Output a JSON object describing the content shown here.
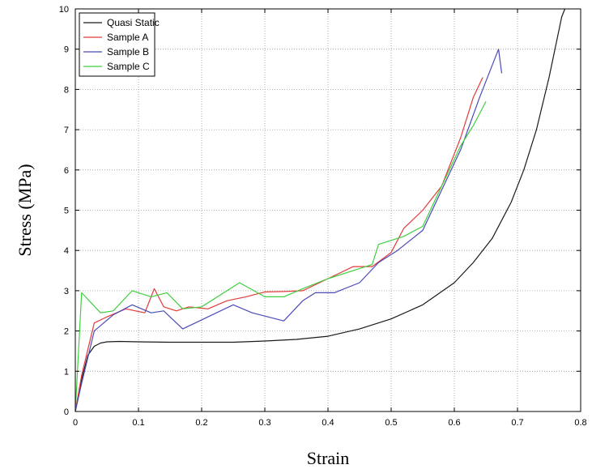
{
  "chart_data": {
    "type": "line",
    "title": "",
    "xlabel": "Strain",
    "ylabel": "Stress (MPa)",
    "xlim": [
      0,
      0.8
    ],
    "ylim": [
      0,
      10
    ],
    "x_ticks": [
      0,
      0.1,
      0.2,
      0.3,
      0.4,
      0.5,
      0.6,
      0.7,
      0.8
    ],
    "x_tick_labels": [
      "0",
      "0.1",
      "0.2",
      "0.3",
      "0.4",
      "0.5",
      "0.6",
      "0.7",
      "0.8"
    ],
    "y_ticks": [
      0,
      1,
      2,
      3,
      4,
      5,
      6,
      7,
      8,
      9,
      10
    ],
    "y_tick_labels": [
      "0",
      "1",
      "2",
      "3",
      "4",
      "5",
      "6",
      "7",
      "8",
      "9",
      "10"
    ],
    "grid": true,
    "legend_position": "top-left",
    "series": [
      {
        "name": "Quasi Static",
        "color": "#1a1a1a",
        "points": [
          [
            0,
            0
          ],
          [
            0.01,
            0.8
          ],
          [
            0.02,
            1.4
          ],
          [
            0.03,
            1.62
          ],
          [
            0.04,
            1.7
          ],
          [
            0.05,
            1.73
          ],
          [
            0.07,
            1.74
          ],
          [
            0.1,
            1.73
          ],
          [
            0.15,
            1.72
          ],
          [
            0.2,
            1.72
          ],
          [
            0.25,
            1.72
          ],
          [
            0.3,
            1.75
          ],
          [
            0.35,
            1.79
          ],
          [
            0.4,
            1.87
          ],
          [
            0.45,
            2.05
          ],
          [
            0.5,
            2.3
          ],
          [
            0.55,
            2.65
          ],
          [
            0.6,
            3.2
          ],
          [
            0.63,
            3.7
          ],
          [
            0.66,
            4.3
          ],
          [
            0.69,
            5.2
          ],
          [
            0.71,
            6.0
          ],
          [
            0.73,
            7.0
          ],
          [
            0.75,
            8.3
          ],
          [
            0.77,
            9.8
          ],
          [
            0.775,
            10
          ]
        ]
      },
      {
        "name": "Sample A",
        "color": "#e23b3b",
        "points": [
          [
            0,
            0
          ],
          [
            0.01,
            0.9
          ],
          [
            0.03,
            2.2
          ],
          [
            0.05,
            2.35
          ],
          [
            0.08,
            2.55
          ],
          [
            0.11,
            2.45
          ],
          [
            0.125,
            3.05
          ],
          [
            0.14,
            2.6
          ],
          [
            0.16,
            2.5
          ],
          [
            0.18,
            2.6
          ],
          [
            0.21,
            2.55
          ],
          [
            0.24,
            2.75
          ],
          [
            0.27,
            2.85
          ],
          [
            0.3,
            2.97
          ],
          [
            0.33,
            2.98
          ],
          [
            0.36,
            3.0
          ],
          [
            0.4,
            3.3
          ],
          [
            0.44,
            3.6
          ],
          [
            0.47,
            3.6
          ],
          [
            0.5,
            3.95
          ],
          [
            0.52,
            4.55
          ],
          [
            0.55,
            5.0
          ],
          [
            0.58,
            5.6
          ],
          [
            0.61,
            6.8
          ],
          [
            0.63,
            7.8
          ],
          [
            0.645,
            8.3
          ]
        ]
      },
      {
        "name": "Sample B",
        "color": "#4a4ab8",
        "points": [
          [
            0,
            0
          ],
          [
            0.01,
            0.7
          ],
          [
            0.03,
            2.0
          ],
          [
            0.06,
            2.4
          ],
          [
            0.09,
            2.65
          ],
          [
            0.12,
            2.45
          ],
          [
            0.14,
            2.5
          ],
          [
            0.17,
            2.05
          ],
          [
            0.21,
            2.35
          ],
          [
            0.25,
            2.65
          ],
          [
            0.28,
            2.45
          ],
          [
            0.33,
            2.25
          ],
          [
            0.36,
            2.75
          ],
          [
            0.38,
            2.95
          ],
          [
            0.41,
            2.95
          ],
          [
            0.45,
            3.2
          ],
          [
            0.48,
            3.7
          ],
          [
            0.51,
            4.0
          ],
          [
            0.55,
            4.5
          ],
          [
            0.58,
            5.5
          ],
          [
            0.61,
            6.5
          ],
          [
            0.64,
            7.8
          ],
          [
            0.67,
            9.0
          ],
          [
            0.675,
            8.4
          ]
        ]
      },
      {
        "name": "Sample C",
        "color": "#3fcf3f",
        "points": [
          [
            0,
            0
          ],
          [
            0.01,
            2.95
          ],
          [
            0.04,
            2.45
          ],
          [
            0.06,
            2.5
          ],
          [
            0.09,
            3.0
          ],
          [
            0.12,
            2.85
          ],
          [
            0.145,
            2.95
          ],
          [
            0.17,
            2.55
          ],
          [
            0.2,
            2.6
          ],
          [
            0.26,
            3.2
          ],
          [
            0.3,
            2.85
          ],
          [
            0.33,
            2.85
          ],
          [
            0.36,
            3.05
          ],
          [
            0.4,
            3.3
          ],
          [
            0.45,
            3.55
          ],
          [
            0.47,
            3.65
          ],
          [
            0.48,
            4.15
          ],
          [
            0.52,
            4.35
          ],
          [
            0.55,
            4.6
          ],
          [
            0.58,
            5.6
          ],
          [
            0.61,
            6.6
          ],
          [
            0.63,
            7.1
          ],
          [
            0.65,
            7.7
          ]
        ]
      }
    ]
  }
}
